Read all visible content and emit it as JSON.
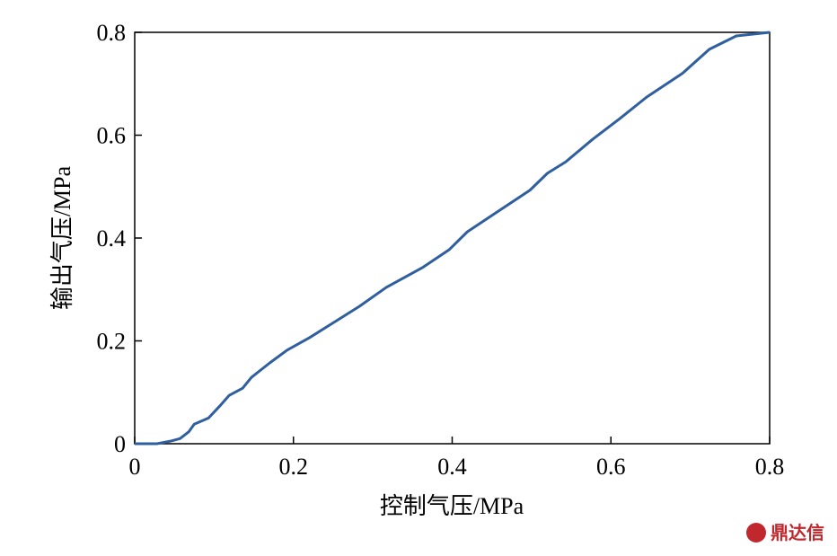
{
  "chart_data": {
    "type": "line",
    "x_label": "控制气压/MPa",
    "y_label": "输出气压/MPa",
    "x": [
      0,
      0.028,
      0.045,
      0.057,
      0.068,
      0.075,
      0.093,
      0.107,
      0.119,
      0.136,
      0.147,
      0.17,
      0.192,
      0.22,
      0.249,
      0.283,
      0.317,
      0.362,
      0.396,
      0.419,
      0.453,
      0.498,
      0.52,
      0.543,
      0.577,
      0.611,
      0.645,
      0.69,
      0.724,
      0.758,
      0.8
    ],
    "series": [
      {
        "color": "#2f5f9e",
        "values": [
          0,
          0,
          0.005,
          0.01,
          0.023,
          0.038,
          0.05,
          0.073,
          0.094,
          0.108,
          0.129,
          0.157,
          0.182,
          0.206,
          0.234,
          0.267,
          0.304,
          0.342,
          0.377,
          0.412,
          0.447,
          0.493,
          0.526,
          0.548,
          0.592,
          0.632,
          0.674,
          0.72,
          0.767,
          0.793,
          0.8
        ]
      }
    ],
    "xlim": [
      0,
      0.8
    ],
    "ylim": [
      0,
      0.8
    ],
    "xticks": [
      0,
      0.2,
      0.4,
      0.6,
      0.8
    ],
    "yticks": [
      0,
      0.2,
      0.4,
      0.6,
      0.8
    ],
    "watermark": "鼎达信"
  }
}
